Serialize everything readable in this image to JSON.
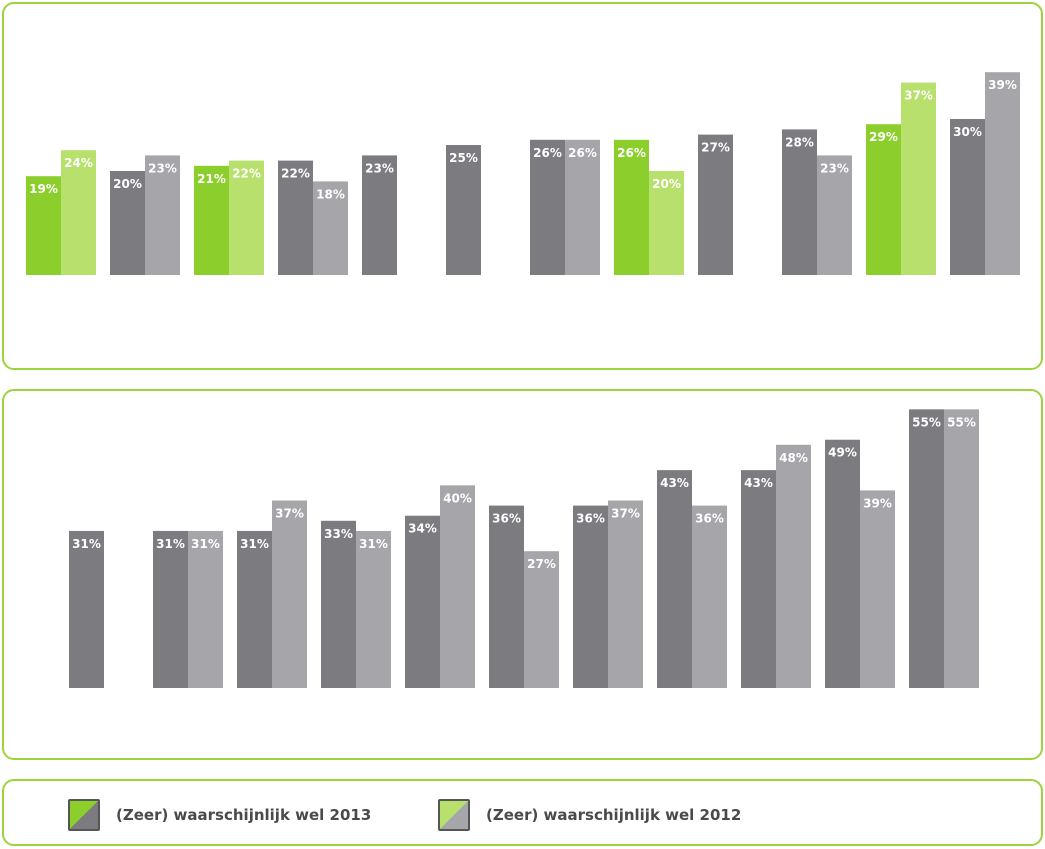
{
  "colors": {
    "green_2013": "#8ccf2c",
    "green_2012": "#b8e06d",
    "grey_2013": "#7c7c80",
    "grey_2012": "#a6a6aa",
    "border": "#9bd43d"
  },
  "chart_data": [
    {
      "type": "bar",
      "ylim": [
        0,
        60
      ],
      "grid": false,
      "series": [
        {
          "name": "(Zeer) waarschijnlijk wel 2013",
          "values": [
            19,
            20,
            21,
            22,
            23,
            25,
            26,
            26,
            27,
            28,
            29,
            30
          ]
        },
        {
          "name": "(Zeer) waarschijnlijk wel 2012",
          "values": [
            24,
            23,
            22,
            18,
            null,
            null,
            26,
            20,
            null,
            23,
            37,
            39
          ]
        }
      ],
      "highlight": [
        true,
        false,
        true,
        false,
        false,
        false,
        false,
        true,
        false,
        false,
        true,
        false
      ],
      "labels_2013": [
        "19%",
        "20%",
        "21%",
        "22%",
        "23%",
        "25%",
        "26%",
        "26%",
        "27%",
        "28%",
        "29%",
        "30%"
      ],
      "labels_2012": [
        "24%",
        "23%",
        "22%",
        "18%",
        "",
        "",
        "26%",
        "20%",
        "",
        "23%",
        "37%",
        "39%"
      ]
    },
    {
      "type": "bar",
      "ylim": [
        0,
        60
      ],
      "grid": false,
      "series": [
        {
          "name": "(Zeer) waarschijnlijk wel 2013",
          "values": [
            31,
            31,
            31,
            33,
            34,
            36,
            36,
            43,
            43,
            49,
            55
          ]
        },
        {
          "name": "(Zeer) waarschijnlijk wel 2012",
          "values": [
            null,
            31,
            37,
            31,
            40,
            27,
            37,
            36,
            48,
            39,
            55
          ]
        }
      ],
      "highlight": [
        false,
        false,
        false,
        false,
        false,
        false,
        false,
        false,
        false,
        false,
        false
      ],
      "labels_2013": [
        "31%",
        "31%",
        "31%",
        "33%",
        "34%",
        "36%",
        "36%",
        "43%",
        "43%",
        "49%",
        "55%"
      ],
      "labels_2012": [
        "",
        "31%",
        "37%",
        "31%",
        "40%",
        "27%",
        "37%",
        "36%",
        "48%",
        "39%",
        "55%"
      ]
    }
  ],
  "legend": {
    "items": [
      {
        "label": "(Zeer) waarschijnlijk wel 2013",
        "swatch": [
          "#8ccf2c",
          "#7c7c80"
        ]
      },
      {
        "label": "(Zeer) waarschijnlijk wel 2012",
        "swatch": [
          "#b8e06d",
          "#a6a6aa"
        ]
      }
    ]
  }
}
